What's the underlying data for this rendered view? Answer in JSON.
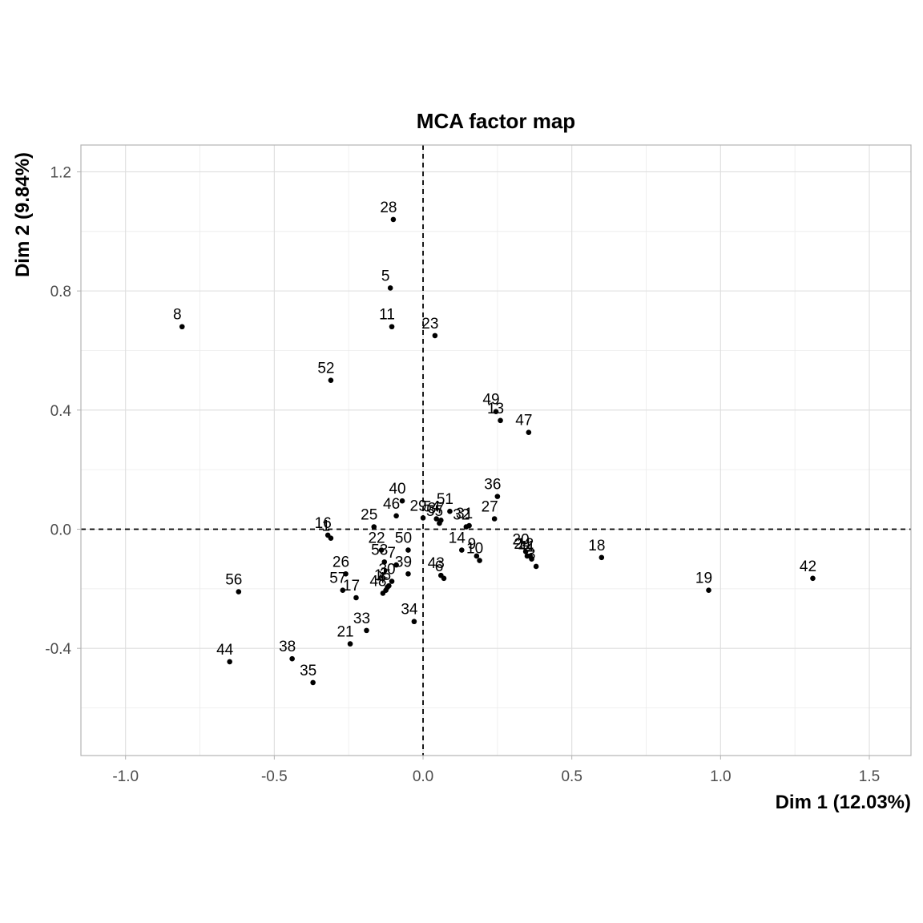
{
  "chart_data": {
    "type": "scatter",
    "title": "MCA factor map",
    "xlabel": "Dim 1 (12.03%)",
    "ylabel": "Dim 2 (9.84%)",
    "xlim": [
      -1.15,
      1.64
    ],
    "ylim": [
      -0.76,
      1.29
    ],
    "x_ticks": [
      -1.0,
      -0.5,
      0.0,
      0.5,
      1.0,
      1.5
    ],
    "x_tick_labels": [
      "-1.0",
      "-0.5",
      "0.0",
      "0.5",
      "1.0",
      "1.5"
    ],
    "y_ticks": [
      -0.4,
      0.0,
      0.4,
      0.8,
      1.2
    ],
    "y_tick_labels": [
      "-0.4",
      "0.0",
      "0.4",
      "0.8",
      "1.2"
    ],
    "grid": true,
    "reference_lines": {
      "x": 0,
      "y": 0,
      "style": "dashed"
    },
    "point_color": "#000000",
    "points": [
      {
        "label": "28",
        "x": -0.1,
        "y": 1.04
      },
      {
        "label": "5",
        "x": -0.11,
        "y": 0.81
      },
      {
        "label": "11",
        "x": -0.105,
        "y": 0.68
      },
      {
        "label": "8",
        "x": -0.81,
        "y": 0.68
      },
      {
        "label": "23",
        "x": 0.04,
        "y": 0.65
      },
      {
        "label": "52",
        "x": -0.31,
        "y": 0.5
      },
      {
        "label": "49",
        "x": 0.245,
        "y": 0.395
      },
      {
        "label": "13",
        "x": 0.26,
        "y": 0.365
      },
      {
        "label": "47",
        "x": 0.355,
        "y": 0.325
      },
      {
        "label": "36",
        "x": 0.25,
        "y": 0.11
      },
      {
        "label": "40",
        "x": -0.07,
        "y": 0.095
      },
      {
        "label": "51",
        "x": 0.09,
        "y": 0.06
      },
      {
        "label": "46",
        "x": -0.09,
        "y": 0.045
      },
      {
        "label": "29",
        "x": 0.0,
        "y": 0.038
      },
      {
        "label": "27",
        "x": 0.24,
        "y": 0.035
      },
      {
        "label": "54",
        "x": 0.045,
        "y": 0.035
      },
      {
        "label": "37",
        "x": 0.06,
        "y": 0.03
      },
      {
        "label": "55",
        "x": 0.055,
        "y": 0.02
      },
      {
        "label": "31",
        "x": 0.155,
        "y": 0.012
      },
      {
        "label": "32",
        "x": 0.145,
        "y": 0.008
      },
      {
        "label": "25",
        "x": -0.165,
        "y": 0.008
      },
      {
        "label": "16",
        "x": -0.32,
        "y": -0.02
      },
      {
        "label": "1",
        "x": -0.31,
        "y": -0.03
      },
      {
        "label": "14",
        "x": 0.13,
        "y": -0.07
      },
      {
        "label": "22",
        "x": -0.14,
        "y": -0.07
      },
      {
        "label": "50",
        "x": -0.05,
        "y": -0.07
      },
      {
        "label": "9",
        "x": 0.18,
        "y": -0.09
      },
      {
        "label": "10",
        "x": 0.19,
        "y": -0.105
      },
      {
        "label": "20",
        "x": 0.345,
        "y": -0.075
      },
      {
        "label": "24",
        "x": 0.35,
        "y": -0.09
      },
      {
        "label": "12",
        "x": 0.36,
        "y": -0.09
      },
      {
        "label": "41",
        "x": 0.365,
        "y": -0.1
      },
      {
        "label": "3",
        "x": 0.38,
        "y": -0.125
      },
      {
        "label": "18",
        "x": 0.6,
        "y": -0.095
      },
      {
        "label": "42",
        "x": 1.31,
        "y": -0.165
      },
      {
        "label": "19",
        "x": 0.96,
        "y": -0.205
      },
      {
        "label": "53",
        "x": -0.13,
        "y": -0.11
      },
      {
        "label": "7",
        "x": -0.09,
        "y": -0.12
      },
      {
        "label": "39",
        "x": -0.05,
        "y": -0.15
      },
      {
        "label": "30",
        "x": -0.105,
        "y": -0.175
      },
      {
        "label": "43",
        "x": 0.06,
        "y": -0.155
      },
      {
        "label": "6",
        "x": 0.07,
        "y": -0.165
      },
      {
        "label": "26",
        "x": -0.26,
        "y": -0.15
      },
      {
        "label": "2",
        "x": -0.115,
        "y": -0.19
      },
      {
        "label": "15",
        "x": -0.12,
        "y": -0.195
      },
      {
        "label": "4",
        "x": -0.125,
        "y": -0.205
      },
      {
        "label": "57",
        "x": -0.27,
        "y": -0.205
      },
      {
        "label": "48",
        "x": -0.135,
        "y": -0.215
      },
      {
        "label": "17",
        "x": -0.225,
        "y": -0.23
      },
      {
        "label": "56",
        "x": -0.62,
        "y": -0.21
      },
      {
        "label": "34",
        "x": -0.03,
        "y": -0.31
      },
      {
        "label": "33",
        "x": -0.19,
        "y": -0.34
      },
      {
        "label": "21",
        "x": -0.245,
        "y": -0.385
      },
      {
        "label": "38",
        "x": -0.44,
        "y": -0.435
      },
      {
        "label": "44",
        "x": -0.65,
        "y": -0.445
      },
      {
        "label": "35",
        "x": -0.37,
        "y": -0.515
      }
    ]
  }
}
